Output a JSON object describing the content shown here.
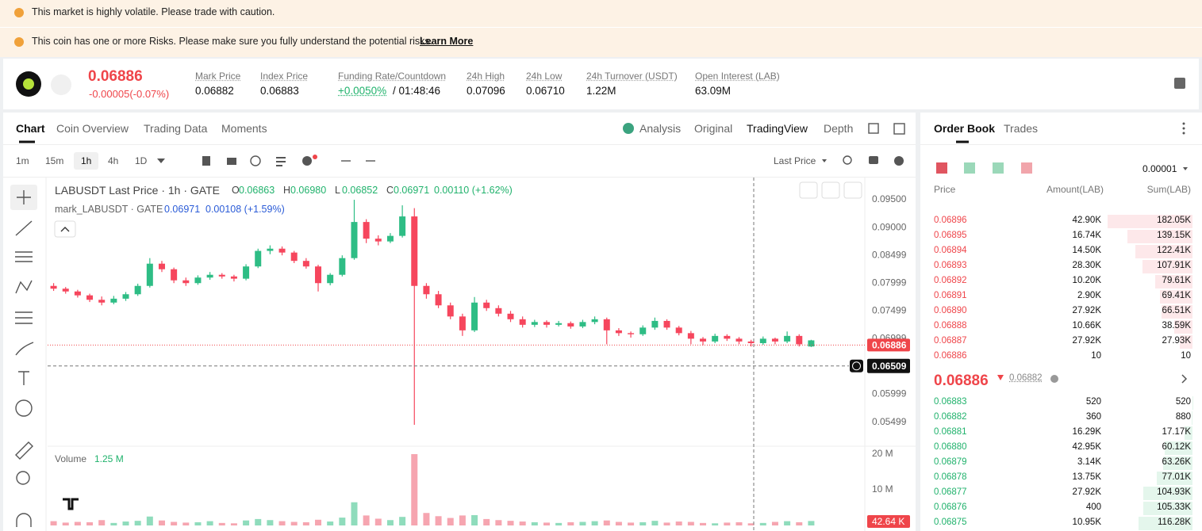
{
  "banners": [
    {
      "text": "This market is highly volatile. Please trade with caution."
    },
    {
      "text": "This coin has one or more Risks. Please make sure you fully understand the potential risks.",
      "link": "Learn More"
    }
  ],
  "ticker": {
    "price": "0.06886",
    "change": "-0.00005(-0.07%)",
    "stats": [
      {
        "label": "Mark Price",
        "value": "0.06882"
      },
      {
        "label": "Index Price",
        "value": "0.06883"
      },
      {
        "label": "Funding Rate/Countdown",
        "value": "+0.0050%",
        "extra": "/ 01:48:46"
      },
      {
        "label": "24h High",
        "value": "0.07096"
      },
      {
        "label": "24h Low",
        "value": "0.06710"
      },
      {
        "label": "24h Turnover (USDT)",
        "value": "1.22M"
      },
      {
        "label": "Open Interest (LAB)",
        "value": "63.09M"
      }
    ]
  },
  "tabs": [
    "Chart",
    "Coin Overview",
    "Trading Data",
    "Moments"
  ],
  "views": [
    "Analysis",
    "Original",
    "TradingView",
    "Depth"
  ],
  "intervals": [
    "1m",
    "15m",
    "1h",
    "4h",
    "1D"
  ],
  "price_type": "Last Price",
  "chart_data": {
    "type": "candlestick",
    "title": "LABUSDT Last Price · 1h · GATE",
    "ohlc": [
      {
        "label": "O",
        "value": "0.06863"
      },
      {
        "label": "H",
        "value": "0.06980"
      },
      {
        "label": "L",
        "value": "0.06852"
      },
      {
        "label": "C",
        "value": "0.06971"
      }
    ],
    "change": "0.00110 (+1.62%)",
    "mark_title": "mark_LABUSDT · GATE",
    "mark_value": "0.06971",
    "mark_change": "0.00108 (+1.59%)",
    "candles": [
      [
        0.0795,
        0.08,
        0.0786,
        0.079
      ],
      [
        0.079,
        0.0793,
        0.0781,
        0.0785
      ],
      [
        0.0785,
        0.0788,
        0.0774,
        0.0778
      ],
      [
        0.0778,
        0.0781,
        0.0766,
        0.077
      ],
      [
        0.077,
        0.0776,
        0.076,
        0.0765
      ],
      [
        0.0765,
        0.0777,
        0.0762,
        0.0772
      ],
      [
        0.0772,
        0.0784,
        0.0768,
        0.078
      ],
      [
        0.078,
        0.0799,
        0.0777,
        0.0795
      ],
      [
        0.0795,
        0.0845,
        0.0792,
        0.0835
      ],
      [
        0.0835,
        0.084,
        0.082,
        0.0825
      ],
      [
        0.0825,
        0.0828,
        0.08,
        0.0805
      ],
      [
        0.0805,
        0.081,
        0.0795,
        0.08
      ],
      [
        0.08,
        0.0814,
        0.0797,
        0.081
      ],
      [
        0.081,
        0.082,
        0.0806,
        0.0815
      ],
      [
        0.0815,
        0.0818,
        0.0808,
        0.0812
      ],
      [
        0.0812,
        0.0815,
        0.0803,
        0.0808
      ],
      [
        0.0808,
        0.0834,
        0.0805,
        0.083
      ],
      [
        0.083,
        0.0862,
        0.0827,
        0.0858
      ],
      [
        0.0858,
        0.0868,
        0.0852,
        0.0862
      ],
      [
        0.0862,
        0.0866,
        0.085,
        0.0855
      ],
      [
        0.0855,
        0.0858,
        0.0836,
        0.084
      ],
      [
        0.084,
        0.0845,
        0.0826,
        0.083
      ],
      [
        0.083,
        0.0833,
        0.0785,
        0.08
      ],
      [
        0.08,
        0.0818,
        0.0796,
        0.0815
      ],
      [
        0.0815,
        0.085,
        0.0812,
        0.0845
      ],
      [
        0.0845,
        0.095,
        0.0842,
        0.091
      ],
      [
        0.091,
        0.0915,
        0.0872,
        0.088
      ],
      [
        0.088,
        0.0886,
        0.0868,
        0.0875
      ],
      [
        0.0875,
        0.089,
        0.0872,
        0.0885
      ],
      [
        0.0885,
        0.094,
        0.0882,
        0.092
      ],
      [
        0.092,
        0.0935,
        0.0545,
        0.0795
      ],
      [
        0.0795,
        0.08,
        0.0772,
        0.078
      ],
      [
        0.078,
        0.0786,
        0.0755,
        0.076
      ],
      [
        0.076,
        0.0765,
        0.0735,
        0.074
      ],
      [
        0.074,
        0.0745,
        0.0705,
        0.0715
      ],
      [
        0.0715,
        0.0775,
        0.0712,
        0.0765
      ],
      [
        0.0765,
        0.077,
        0.075,
        0.0755
      ],
      [
        0.0755,
        0.076,
        0.074,
        0.0745
      ],
      [
        0.0745,
        0.075,
        0.073,
        0.0735
      ],
      [
        0.0735,
        0.074,
        0.072,
        0.0725
      ],
      [
        0.0725,
        0.0734,
        0.0721,
        0.073
      ],
      [
        0.073,
        0.0733,
        0.072,
        0.0725
      ],
      [
        0.0725,
        0.0732,
        0.0722,
        0.0728
      ],
      [
        0.0728,
        0.0731,
        0.0718,
        0.0722
      ],
      [
        0.0722,
        0.0734,
        0.0719,
        0.073
      ],
      [
        0.073,
        0.074,
        0.0726,
        0.0735
      ],
      [
        0.0735,
        0.0738,
        0.069,
        0.0715
      ],
      [
        0.0715,
        0.0719,
        0.0705,
        0.071
      ],
      [
        0.071,
        0.0713,
        0.0702,
        0.0708
      ],
      [
        0.0708,
        0.0724,
        0.0705,
        0.072
      ],
      [
        0.072,
        0.0738,
        0.0716,
        0.0732
      ],
      [
        0.0732,
        0.0735,
        0.0716,
        0.072
      ],
      [
        0.072,
        0.0723,
        0.0706,
        0.071
      ],
      [
        0.071,
        0.0714,
        0.069,
        0.07
      ],
      [
        0.07,
        0.0703,
        0.0688,
        0.0695
      ],
      [
        0.0695,
        0.0709,
        0.0692,
        0.0705
      ],
      [
        0.0705,
        0.0708,
        0.0696,
        0.07
      ],
      [
        0.07,
        0.0703,
        0.069,
        0.0695
      ],
      [
        0.0695,
        0.0698,
        0.0686,
        0.0692
      ],
      [
        0.0692,
        0.0704,
        0.0689,
        0.07
      ],
      [
        0.07,
        0.0702,
        0.069,
        0.0695
      ],
      [
        0.0695,
        0.0713,
        0.0692,
        0.0705
      ],
      [
        0.0705,
        0.0708,
        0.0686,
        0.069
      ],
      [
        0.0686,
        0.0698,
        0.0685,
        0.0697
      ]
    ],
    "ylim": [
      0.0508,
      0.099
    ],
    "yticks": [
      {
        "value": 0.095,
        "label": "0.09500"
      },
      {
        "value": 0.09,
        "label": "0.09000"
      },
      0.08499,
      0.07999,
      0.07499,
      0.06999,
      0.05999,
      0.05499
    ],
    "last_price": 0.06886,
    "crosshair_price": 0.06509,
    "volume_title": "Volume",
    "volume_value": "1.25 M",
    "volumes": [
      1.2,
      0.8,
      1.0,
      0.9,
      1.5,
      0.7,
      1.1,
      1.3,
      2.5,
      1.4,
      1.0,
      0.8,
      0.9,
      1.2,
      0.7,
      0.6,
      1.4,
      1.8,
      1.5,
      1.2,
      1.0,
      0.9,
      1.6,
      1.1,
      2.2,
      6.5,
      2.8,
      1.9,
      1.5,
      2.4,
      20.0,
      3.5,
      2.6,
      2.1,
      2.8,
      2.9,
      1.8,
      1.5,
      1.3,
      1.1,
      0.9,
      0.8,
      0.7,
      0.9,
      1.0,
      1.2,
      1.4,
      1.0,
      0.8,
      0.9,
      1.3,
      0.8,
      1.1,
      1.0,
      0.7,
      0.6,
      0.8,
      0.9,
      0.6,
      0.7,
      1.0,
      1.2,
      0.9,
      1.25
    ],
    "volume_ylim": [
      0,
      22
    ],
    "volume_yticks": [
      {
        "value": 20,
        "label": "20 M"
      },
      {
        "value": 10,
        "label": "10 M"
      }
    ],
    "volume_tag": {
      "value": 0.04264,
      "label": "42.64 K"
    }
  },
  "order_book": {
    "tabs": [
      "Order Book",
      "Trades"
    ],
    "precision": "0.00001",
    "headers": [
      "Price",
      "Amount(LAB)",
      "Sum(LAB)"
    ],
    "asks": [
      [
        "0.06896",
        "42.90K",
        "182.05K"
      ],
      [
        "0.06895",
        "16.74K",
        "139.15K"
      ],
      [
        "0.06894",
        "14.50K",
        "122.41K"
      ],
      [
        "0.06893",
        "28.30K",
        "107.91K"
      ],
      [
        "0.06892",
        "10.20K",
        "79.61K"
      ],
      [
        "0.06891",
        "2.90K",
        "69.41K"
      ],
      [
        "0.06890",
        "27.92K",
        "66.51K"
      ],
      [
        "0.06888",
        "10.66K",
        "38.59K"
      ],
      [
        "0.06887",
        "27.92K",
        "27.93K"
      ],
      [
        "0.06886",
        "10",
        "10"
      ]
    ],
    "mid_price": "0.06886",
    "mark_price": "0.06882",
    "bids": [
      [
        "0.06883",
        "520",
        "520"
      ],
      [
        "0.06882",
        "360",
        "880"
      ],
      [
        "0.06881",
        "16.29K",
        "17.17K"
      ],
      [
        "0.06880",
        "42.95K",
        "60.12K"
      ],
      [
        "0.06879",
        "3.14K",
        "63.26K"
      ],
      [
        "0.06878",
        "13.75K",
        "77.01K"
      ],
      [
        "0.06877",
        "27.92K",
        "104.93K"
      ],
      [
        "0.06876",
        "400",
        "105.33K"
      ],
      [
        "0.06875",
        "10.95K",
        "116.28K"
      ]
    ]
  }
}
